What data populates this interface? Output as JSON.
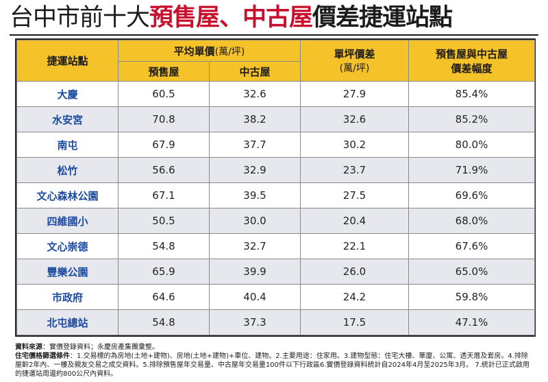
{
  "title": {
    "part1": "台中市前十大",
    "part2": "預售屋、中古屋",
    "part3": "價差捷運站點"
  },
  "headers": {
    "station": "捷運站點",
    "avg_price": "平均單價",
    "avg_price_unit": "(萬/坪)",
    "presale": "預售屋",
    "used": "中古屋",
    "diff": "單坪價差",
    "diff_unit": "(萬/坪)",
    "gap_line1": "預售屋與中古屋",
    "gap_line2": "價差幅度"
  },
  "rows": [
    {
      "station": "大慶",
      "presale": "60.5",
      "used": "32.6",
      "diff": "27.9",
      "gap": "85.4%"
    },
    {
      "station": "水安宮",
      "presale": "70.8",
      "used": "38.2",
      "diff": "32.6",
      "gap": "85.2%"
    },
    {
      "station": "南屯",
      "presale": "67.9",
      "used": "37.7",
      "diff": "30.2",
      "gap": "80.0%"
    },
    {
      "station": "松竹",
      "presale": "56.6",
      "used": "32.9",
      "diff": "23.7",
      "gap": "71.9%"
    },
    {
      "station": "文心森林公園",
      "presale": "67.1",
      "used": "39.5",
      "diff": "27.5",
      "gap": "69.6%"
    },
    {
      "station": "四維國小",
      "presale": "50.5",
      "used": "30.0",
      "diff": "20.4",
      "gap": "68.0%"
    },
    {
      "station": "文心崇德",
      "presale": "54.8",
      "used": "32.7",
      "diff": "22.1",
      "gap": "67.6%"
    },
    {
      "station": "豐樂公園",
      "presale": "65.9",
      "used": "39.9",
      "diff": "26.0",
      "gap": "65.0%"
    },
    {
      "station": "市政府",
      "presale": "64.6",
      "used": "40.4",
      "diff": "24.2",
      "gap": "59.8%"
    },
    {
      "station": "北屯總站",
      "presale": "54.8",
      "used": "37.3",
      "diff": "17.5",
      "gap": "47.1%"
    }
  ],
  "notes": {
    "source_label": "資料來源",
    "source_text": "：實價登錄資料；永慶房產集團彙整。",
    "criteria_label": "住宅價格篩選條件",
    "criteria_text": "：1.交易標的為房地(土地+建物)、房地(土地+建物)+車位、建物。2.主要用途：住家用。3.建物型態：住宅大樓、華廈、公寓、透天厝及套房。4.排除屋齡2年內、一樓及親友交易之成交資料。5.排除預售屋年交易量、中古屋年交易量100件以下行政區6.實價登錄資料統計自2024年4月至2025年3月。 7.統計已正式啟用的捷運站周邊約800公尺內資料。"
  }
}
